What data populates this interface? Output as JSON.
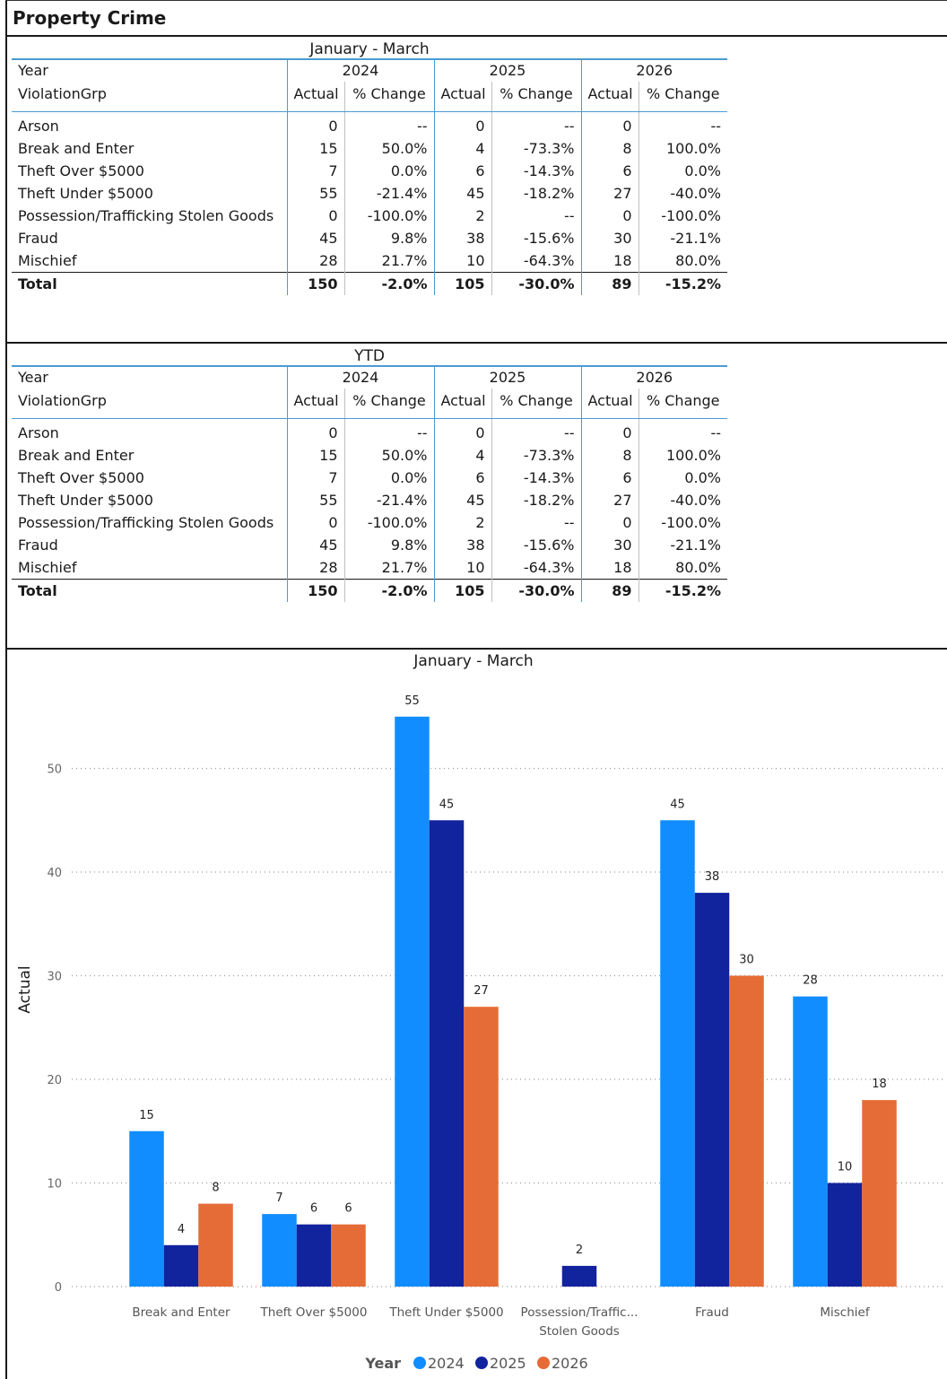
{
  "page": {
    "title": "Property Crime"
  },
  "tables": [
    {
      "title": "January - March",
      "year_label": "Year",
      "group_label": "ViolationGrp",
      "years": [
        "2024",
        "2025",
        "2026"
      ],
      "col_actual": "Actual",
      "col_change": "% Change",
      "rows": [
        {
          "name": "Arson",
          "cells": [
            "0",
            "--",
            "0",
            "--",
            "0",
            "--"
          ]
        },
        {
          "name": "Break and Enter",
          "cells": [
            "15",
            "50.0%",
            "4",
            "-73.3%",
            "8",
            "100.0%"
          ]
        },
        {
          "name": "Theft Over $5000",
          "cells": [
            "7",
            "0.0%",
            "6",
            "-14.3%",
            "6",
            "0.0%"
          ]
        },
        {
          "name": "Theft Under $5000",
          "cells": [
            "55",
            "-21.4%",
            "45",
            "-18.2%",
            "27",
            "-40.0%"
          ]
        },
        {
          "name": "Possession/Trafficking Stolen Goods",
          "cells": [
            "0",
            "-100.0%",
            "2",
            "--",
            "0",
            "-100.0%"
          ]
        },
        {
          "name": "Fraud",
          "cells": [
            "45",
            "9.8%",
            "38",
            "-15.6%",
            "30",
            "-21.1%"
          ]
        },
        {
          "name": "Mischief",
          "cells": [
            "28",
            "21.7%",
            "10",
            "-64.3%",
            "18",
            "80.0%"
          ]
        }
      ],
      "total": {
        "name": "Total",
        "cells": [
          "150",
          "-2.0%",
          "105",
          "-30.0%",
          "89",
          "-15.2%"
        ]
      }
    },
    {
      "title": "YTD",
      "year_label": "Year",
      "group_label": "ViolationGrp",
      "years": [
        "2024",
        "2025",
        "2026"
      ],
      "col_actual": "Actual",
      "col_change": "% Change",
      "rows": [
        {
          "name": "Arson",
          "cells": [
            "0",
            "--",
            "0",
            "--",
            "0",
            "--"
          ]
        },
        {
          "name": "Break and Enter",
          "cells": [
            "15",
            "50.0%",
            "4",
            "-73.3%",
            "8",
            "100.0%"
          ]
        },
        {
          "name": "Theft Over $5000",
          "cells": [
            "7",
            "0.0%",
            "6",
            "-14.3%",
            "6",
            "0.0%"
          ]
        },
        {
          "name": "Theft Under $5000",
          "cells": [
            "55",
            "-21.4%",
            "45",
            "-18.2%",
            "27",
            "-40.0%"
          ]
        },
        {
          "name": "Possession/Trafficking Stolen Goods",
          "cells": [
            "0",
            "-100.0%",
            "2",
            "--",
            "0",
            "-100.0%"
          ]
        },
        {
          "name": "Fraud",
          "cells": [
            "45",
            "9.8%",
            "38",
            "-15.6%",
            "30",
            "-21.1%"
          ]
        },
        {
          "name": "Mischief",
          "cells": [
            "28",
            "21.7%",
            "10",
            "-64.3%",
            "18",
            "80.0%"
          ]
        }
      ],
      "total": {
        "name": "Total",
        "cells": [
          "150",
          "-2.0%",
          "105",
          "-30.0%",
          "89",
          "-15.2%"
        ]
      }
    }
  ],
  "chart_data": {
    "type": "bar",
    "title": "January - March",
    "ylabel": "Actual",
    "xlabel": "",
    "categories": [
      [
        "Break and Enter"
      ],
      [
        "Theft Over $5000"
      ],
      [
        "Theft Under $5000"
      ],
      [
        "Possession/Traffic...",
        "Stolen Goods"
      ],
      [
        "Fraud"
      ],
      [
        "Mischief"
      ]
    ],
    "series": [
      {
        "name": "2024",
        "color": "#118DFF",
        "values": [
          15,
          7,
          55,
          null,
          45,
          28
        ]
      },
      {
        "name": "2025",
        "color": "#12239E",
        "values": [
          4,
          6,
          45,
          2,
          38,
          10
        ]
      },
      {
        "name": "2026",
        "color": "#E66C37",
        "values": [
          8,
          6,
          27,
          null,
          30,
          18
        ]
      }
    ],
    "ylim": [
      0,
      55
    ],
    "yticks": [
      0,
      10,
      20,
      30,
      40,
      50
    ],
    "grid": true,
    "legend": {
      "title": "Year",
      "position": "bottom-center"
    }
  }
}
